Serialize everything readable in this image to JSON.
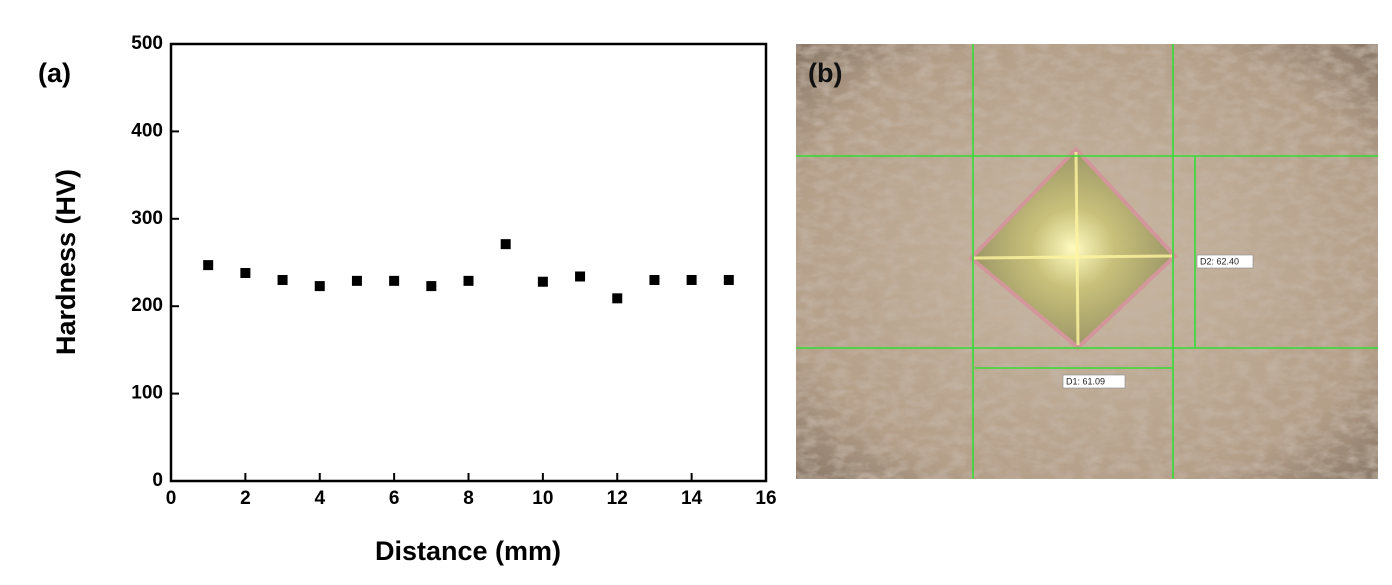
{
  "chart_data": {
    "type": "scatter",
    "label": "(a)",
    "x_label": "Distance (mm)",
    "y_label": "Hardness (HV)",
    "x": [
      1,
      2,
      3,
      4,
      5,
      6,
      7,
      8,
      9,
      10,
      11,
      12,
      13,
      14,
      15
    ],
    "values": [
      247,
      238,
      230,
      223,
      229,
      229,
      223,
      229,
      271,
      228,
      234,
      209,
      230,
      230,
      230
    ],
    "color": "#000000",
    "xlim": [
      0,
      16
    ],
    "xticks": [
      0,
      2,
      4,
      6,
      8,
      10,
      12,
      14,
      16
    ],
    "ylim": [
      0,
      500
    ],
    "yticks": [
      0,
      100,
      200,
      300,
      400,
      500
    ]
  },
  "image": {
    "label": "(b)",
    "d1": "D1: 61.09",
    "d2": "D2: 62.40"
  }
}
